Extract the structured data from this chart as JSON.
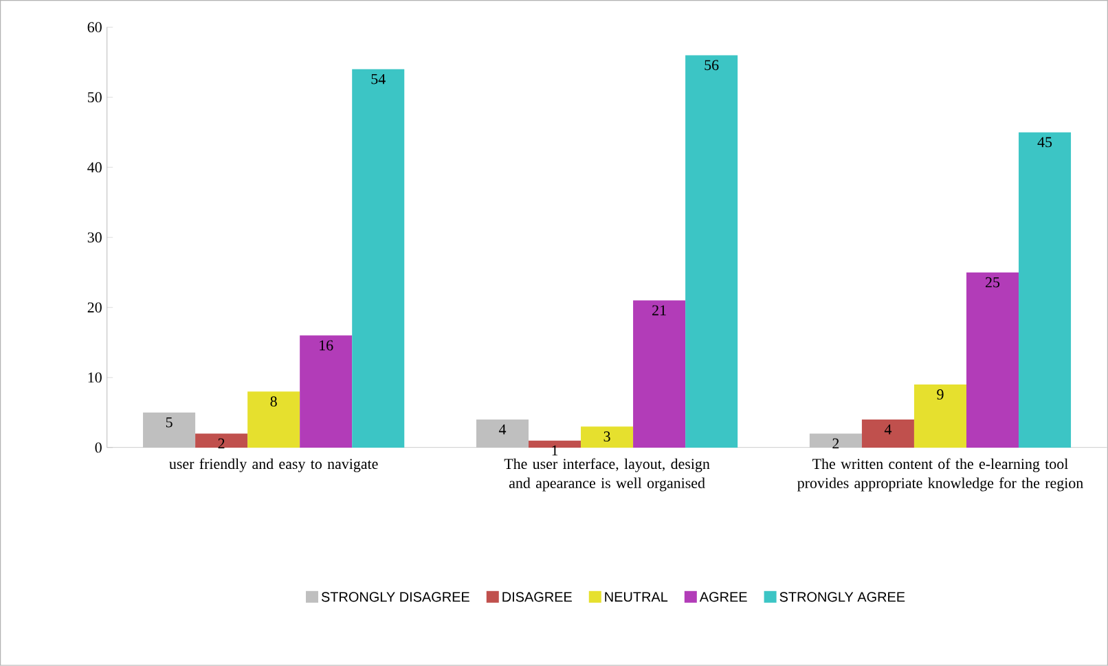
{
  "chart_data": {
    "type": "bar",
    "categories": [
      "user friendly and easy to navigate",
      "The user interface, layout, design and apearance is well organised",
      "The written content of the e-learning tool provides appropriate knowledge for the region"
    ],
    "series": [
      {
        "name": "STRONGLY DISAGREE",
        "color": "#bfbfbf",
        "values": [
          5,
          4,
          2
        ]
      },
      {
        "name": "DISAGREE",
        "color": "#c0504d",
        "values": [
          2,
          1,
          4
        ]
      },
      {
        "name": "NEUTRAL",
        "color": "#e6e02e",
        "values": [
          8,
          3,
          9
        ]
      },
      {
        "name": "AGREE",
        "color": "#b23cb8",
        "values": [
          16,
          21,
          25
        ]
      },
      {
        "name": "STRONGLY AGREE",
        "color": "#3cc5c5",
        "values": [
          54,
          56,
          45
        ]
      }
    ],
    "ylim": [
      0,
      60
    ],
    "yticks": [
      0,
      10,
      20,
      30,
      40,
      50,
      60
    ],
    "data_labels": true,
    "grid": false,
    "legend": "bottom"
  }
}
